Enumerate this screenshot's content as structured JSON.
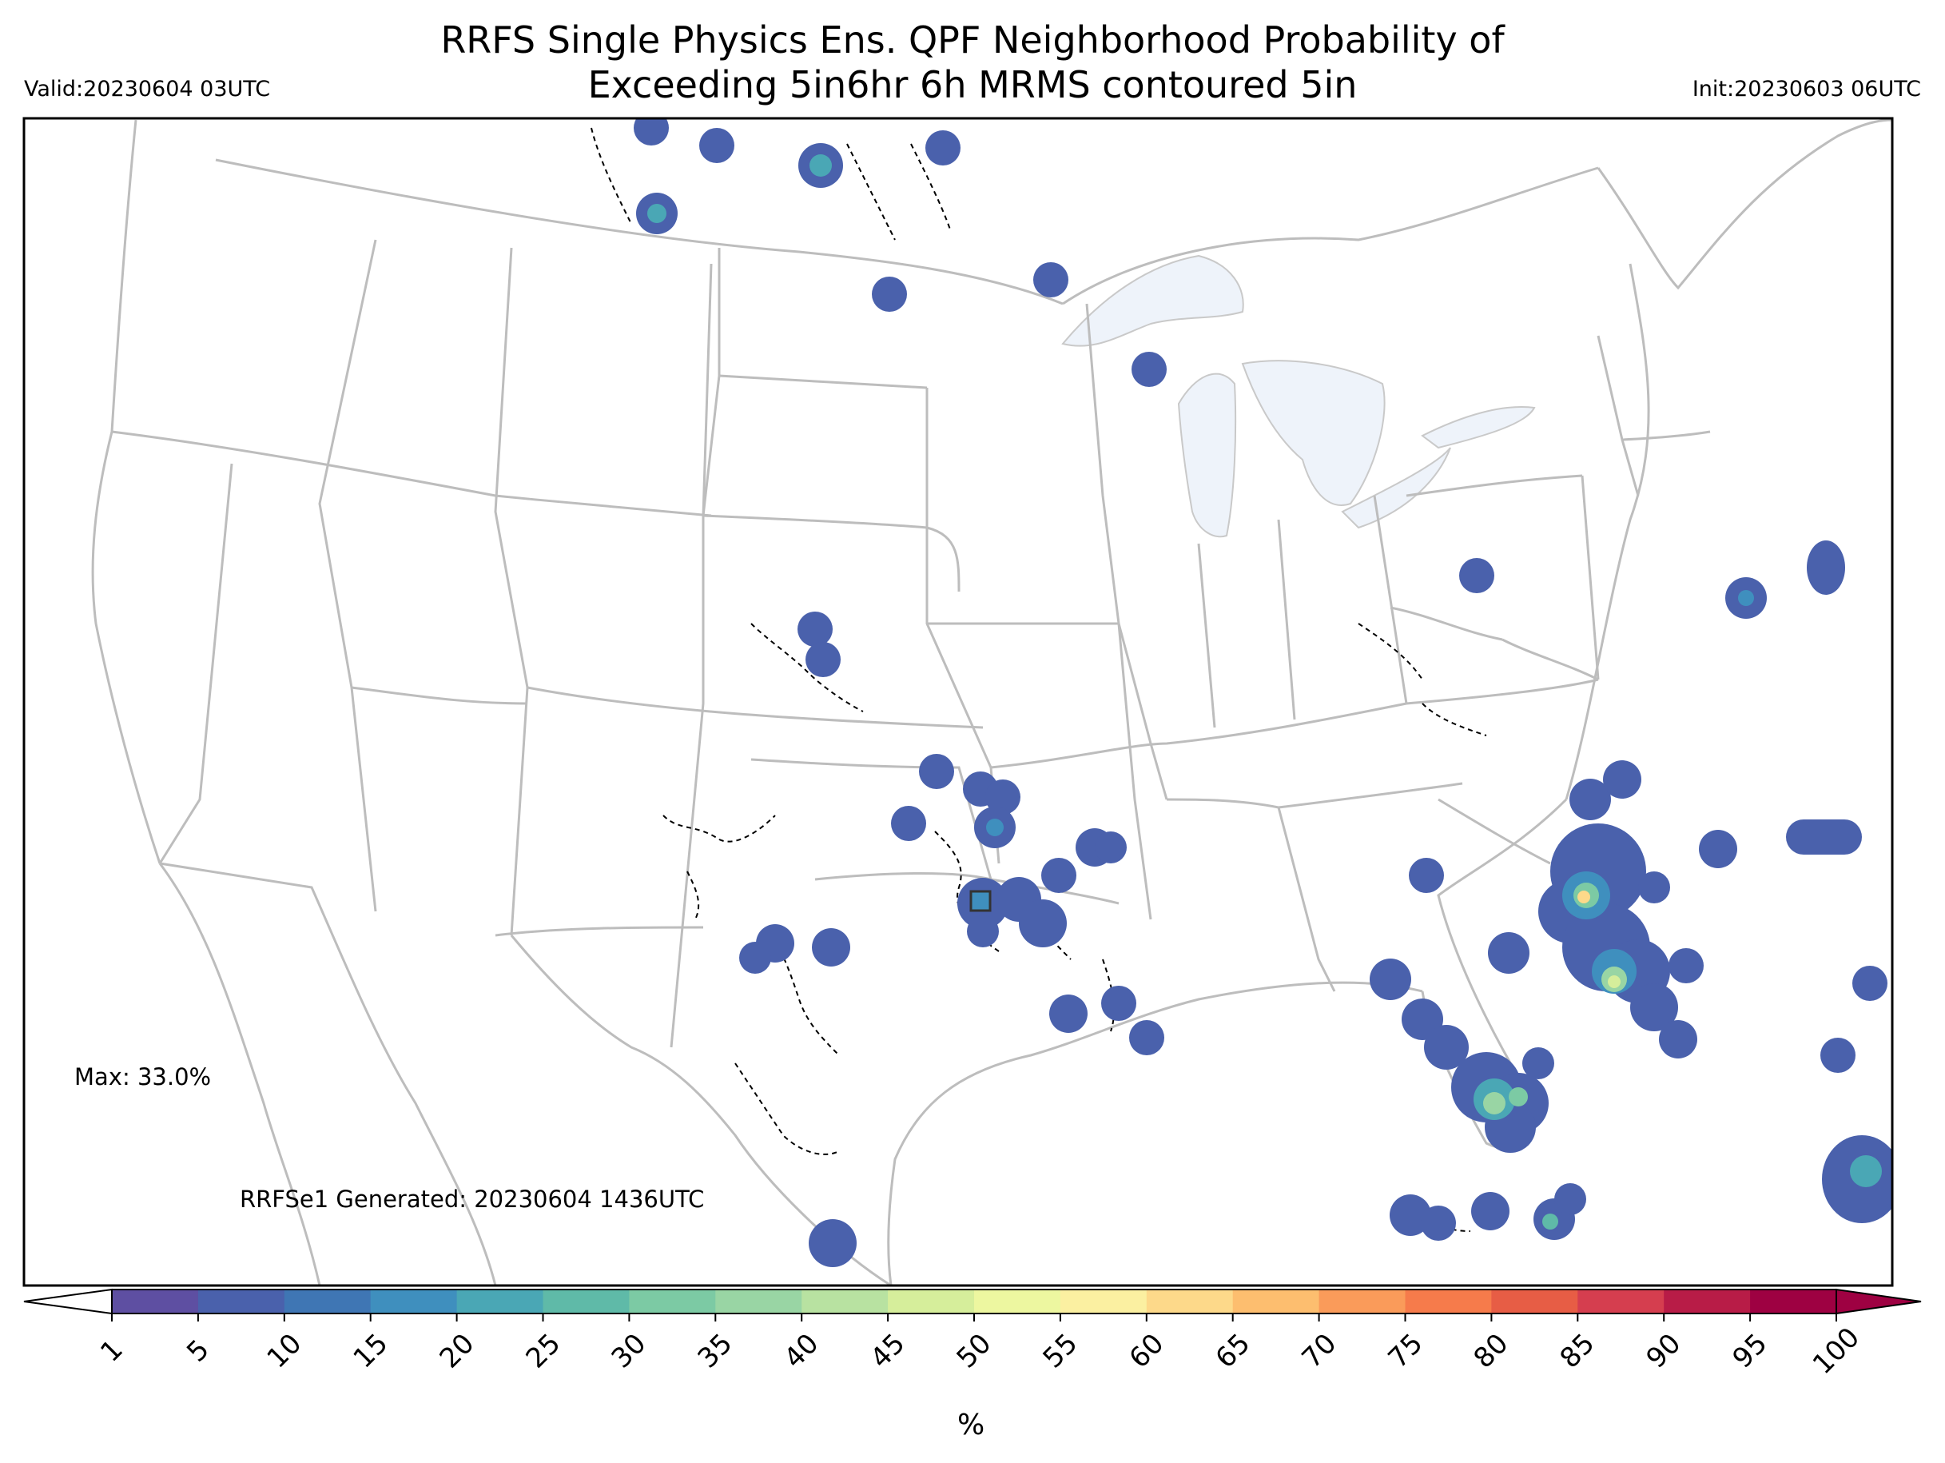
{
  "header": {
    "title_line1": "RRFS Single Physics Ens. QPF Neighborhood Probability of",
    "title_line2": "Exceeding 5in6hr 6h MRMS contoured 5in",
    "valid": "Valid:20230604 03UTC",
    "init": "Init:20230603 06UTC"
  },
  "annotations": {
    "max": "Max: 33.0%",
    "generated": "RRFSe1 Generated: 20230604 1436UTC"
  },
  "colorbar": {
    "ticks": [
      "1",
      "5",
      "10",
      "15",
      "20",
      "25",
      "30",
      "35",
      "40",
      "45",
      "50",
      "55",
      "60",
      "65",
      "70",
      "75",
      "80",
      "85",
      "90",
      "95",
      "100"
    ],
    "colors": [
      "#5e4fa2",
      "#4a61ac",
      "#3f76b4",
      "#3f8fbe",
      "#4aa7b5",
      "#5fbaa8",
      "#7ccaa4",
      "#99d5a4",
      "#b8e2a1",
      "#d6ee9b",
      "#edf7a0",
      "#fbf0a1",
      "#fdd98a",
      "#fdbe6f",
      "#fa9b5a",
      "#f67b4b",
      "#e75d45",
      "#d53e4f",
      "#b81c47",
      "#9e0142"
    ],
    "unit": "%"
  },
  "colors": {
    "map_lines": "#bdbdbd",
    "lakes": "#eef3fa",
    "contour": "#000000"
  }
}
